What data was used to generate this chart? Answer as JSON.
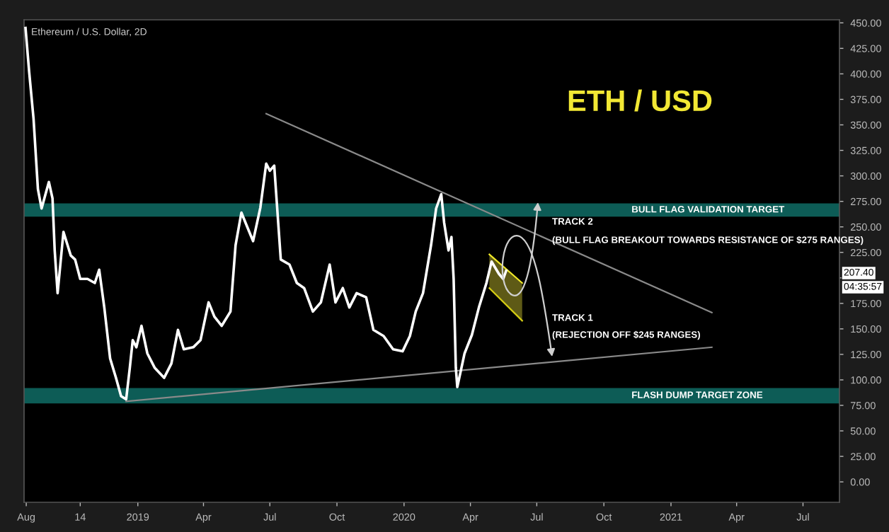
{
  "chart_data": {
    "type": "line",
    "title": "ETH / USD",
    "subtitle": "Ethereum / U.S. Dollar, 2D",
    "series": [
      {
        "type": "line",
        "color": "#f0e828",
        "x": [
          "2020-04-27",
          "2020-06-11"
        ],
        "values": [
          223,
          195
        ]
      },
      {
        "type": "line",
        "color": "#d4cc14",
        "x": [
          "2020-04-27",
          "2020-06-11"
        ],
        "values": [
          190,
          158
        ]
      },
      {
        "type": "line",
        "color": "#8a8a8a",
        "x": [
          "2019-06-26",
          "2021-02-26"
        ],
        "values": [
          361,
          166
        ]
      },
      {
        "type": "line",
        "color": "#8a8a8a",
        "x": [
          "2018-12-16",
          "2021-02-26"
        ],
        "values": [
          79,
          132
        ]
      },
      {
        "color": "#ffffff",
        "x": [
          "2018-07-31",
          "2018-08-05",
          "2018-08-11",
          "2018-08-17",
          "2018-08-22",
          "2018-09-01",
          "2018-09-06",
          "2018-09-09",
          "2018-09-13",
          "2018-09-21",
          "2018-10-01",
          "2018-10-07",
          "2018-10-14",
          "2018-10-24",
          "2018-11-03",
          "2018-11-09",
          "2018-11-16",
          "2018-11-24",
          "2018-12-02",
          "2018-12-09",
          "2018-12-16",
          "2018-12-21",
          "2018-12-25",
          "2018-12-30",
          "2019-01-06",
          "2019-01-14",
          "2019-01-24",
          "2019-02-06",
          "2019-02-16",
          "2019-02-25",
          "2019-03-05",
          "2019-03-18",
          "2019-03-28",
          "2019-04-08",
          "2019-04-16",
          "2019-04-26",
          "2019-05-08",
          "2019-05-15",
          "2019-05-23",
          "2019-05-31",
          "2019-06-08",
          "2019-06-18",
          "2019-06-26",
          "2019-07-01",
          "2019-07-07",
          "2019-07-11",
          "2019-07-16",
          "2019-07-28",
          "2019-08-07",
          "2019-08-17",
          "2019-08-29",
          "2019-09-09",
          "2019-09-21",
          "2019-09-29",
          "2019-10-09",
          "2019-10-18",
          "2019-10-28",
          "2019-11-10",
          "2019-11-20",
          "2019-12-04",
          "2019-12-17",
          "2019-12-30",
          "2020-01-09",
          "2020-01-17",
          "2020-01-27",
          "2020-02-07",
          "2020-02-14",
          "2020-02-21",
          "2020-02-25",
          "2020-03-02",
          "2020-03-06",
          "2020-03-09",
          "2020-03-12",
          "2020-03-14",
          "2020-03-24",
          "2020-04-03",
          "2020-04-13",
          "2020-04-23",
          "2020-04-30",
          "2020-05-10",
          "2020-05-16",
          "2020-05-20"
        ],
        "values": [
          445,
          402,
          356,
          287,
          268,
          294,
          278,
          227,
          185,
          245,
          222,
          218,
          199,
          199,
          195,
          208,
          171,
          121,
          102,
          84,
          81,
          112,
          139,
          132,
          153,
          126,
          112,
          102,
          116,
          149,
          130,
          132,
          139,
          176,
          162,
          153,
          167,
          232,
          264,
          250,
          236,
          269,
          312,
          305,
          310,
          269,
          218,
          213,
          195,
          190,
          167,
          176,
          213,
          176,
          190,
          171,
          185,
          181,
          149,
          143,
          130,
          128,
          143,
          167,
          185,
          232,
          268,
          282,
          254,
          227,
          240,
          199,
          112,
          93,
          126,
          144,
          172,
          195,
          216,
          204,
          199,
          207
        ]
      }
    ],
    "bands": [
      {
        "axis": "y",
        "from": 260,
        "to": 273,
        "label": "BULL FLAG VALIDATION TARGET",
        "color": "#0d5c56"
      },
      {
        "axis": "y",
        "from": 77,
        "to": 92,
        "label": "FLASH DUMP TARGET ZONE",
        "color": "#0d5c56"
      }
    ],
    "xlim": [
      "2018-07-29",
      "2021-08-20"
    ],
    "xticks": [
      {
        "value": "2018-08-01",
        "label": "Aug"
      },
      {
        "value": "2018-10-14",
        "label": "14"
      },
      {
        "value": "2019-01-01",
        "label": "2019"
      },
      {
        "value": "2019-04-01",
        "label": "Apr"
      },
      {
        "value": "2019-07-01",
        "label": "Jul"
      },
      {
        "value": "2019-10-01",
        "label": "Oct"
      },
      {
        "value": "2020-01-01",
        "label": "2020"
      },
      {
        "value": "2020-04-01",
        "label": "Apr"
      },
      {
        "value": "2020-07-01",
        "label": "Jul"
      },
      {
        "value": "2020-10-01",
        "label": "Oct"
      },
      {
        "value": "2021-01-01",
        "label": "2021"
      },
      {
        "value": "2021-04-01",
        "label": "Apr"
      },
      {
        "value": "2021-07-01",
        "label": "Jul"
      }
    ],
    "ylim": [
      -20,
      453
    ],
    "yticks": [
      {
        "value": 0,
        "label": "0.00"
      },
      {
        "value": 25,
        "label": "25.00"
      },
      {
        "value": 50,
        "label": "50.00"
      },
      {
        "value": 75,
        "label": "75.00"
      },
      {
        "value": 100,
        "label": "100.00"
      },
      {
        "value": 125,
        "label": "125.00"
      },
      {
        "value": 150,
        "label": "150.00"
      },
      {
        "value": 175,
        "label": "175.00"
      },
      {
        "value": 200,
        "label": null
      },
      {
        "value": 225,
        "label": "225.00"
      },
      {
        "value": 250,
        "label": "250.00"
      },
      {
        "value": 275,
        "label": "275.00"
      },
      {
        "value": 300,
        "label": "300.00"
      },
      {
        "value": 325,
        "label": "325.00"
      },
      {
        "value": 350,
        "label": "350.00"
      },
      {
        "value": 375,
        "label": "375.00"
      },
      {
        "value": 400,
        "label": "400.00"
      },
      {
        "value": 425,
        "label": "425.00"
      },
      {
        "value": 450,
        "label": "450.00"
      }
    ],
    "annotations": [
      "207.40",
      "04:35:57",
      "TRACK 2",
      "(BULL FLAG BREAKOUT TOWARDS RESISTANCE OF $275 RANGES)",
      "TRACK 1",
      "(REJECTION OFF $245 RANGES)"
    ],
    "grid": false,
    "legend": false,
    "marker": "none",
    "line_style": "solid"
  }
}
